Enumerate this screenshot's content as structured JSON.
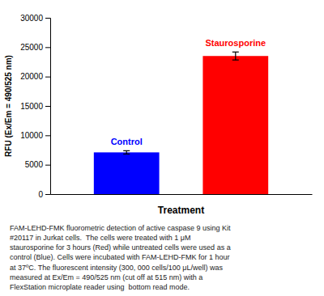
{
  "chart_data": {
    "type": "bar",
    "categories": [
      "Control",
      "Staurosporine"
    ],
    "values": [
      7100,
      23500
    ],
    "errors": [
      280,
      680
    ],
    "colors": [
      "#0000FF",
      "#FF0000"
    ],
    "xlabel": "Treatment",
    "ylabel": "RFU (Ex/Em = 490/525 nm)",
    "ylim": [
      0,
      30000
    ],
    "yticks": [
      0,
      5000,
      10000,
      15000,
      20000,
      25000,
      30000
    ],
    "tick_labels": "y",
    "caption": "FAM-LEHD-FMK fluorometric detection of active caspase 9 using Kit\n#20117 in Jurkat cells.  The cells were treated with 1 μM\nstaurosporine for 3 hours (Red) while untreated cells were used as a\ncontrol (Blue). Cells were incubated with FAM-LEHD-FMK for 1 hour\nat 37ºC. The fluorescent intensity (300, 000 cells/100 μL/well) was\nmeasured at Ex/Em = 490/525 nm (cut off at 515 nm) with a\nFlexStation microplate reader using  bottom read mode."
  }
}
